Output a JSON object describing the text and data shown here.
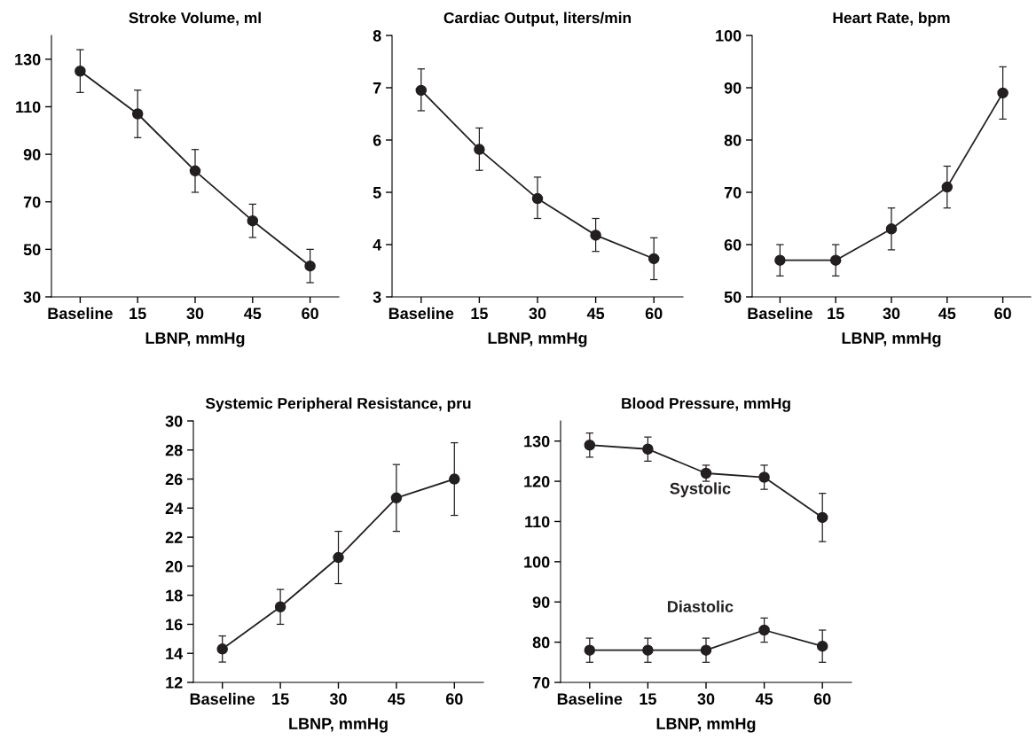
{
  "chart_data": [
    {
      "type": "line",
      "title": "Stroke Volume, ml",
      "xlabel": "LBNP, mmHg",
      "categories": [
        "Baseline",
        "15",
        "30",
        "45",
        "60"
      ],
      "ylim": [
        30,
        140
      ],
      "yticks": [
        30,
        50,
        70,
        90,
        110,
        130
      ],
      "marker": "circle",
      "line_style": "solid",
      "grid": false,
      "legend": false,
      "series": [
        {
          "color": "#231f20",
          "values": [
            125,
            107,
            83,
            62,
            43
          ],
          "errors": [
            [
              116,
              134
            ],
            [
              97,
              117
            ],
            [
              74,
              92
            ],
            [
              55,
              69
            ],
            [
              36,
              50
            ]
          ]
        }
      ]
    },
    {
      "type": "line",
      "title": "Cardiac Output, liters/min",
      "xlabel": "LBNP, mmHg",
      "categories": [
        "Baseline",
        "15",
        "30",
        "45",
        "60"
      ],
      "ylim": [
        3,
        8
      ],
      "yticks": [
        3,
        4,
        5,
        6,
        7,
        8
      ],
      "marker": "circle",
      "line_style": "solid",
      "grid": false,
      "legend": false,
      "series": [
        {
          "color": "#231f20",
          "values": [
            6.95,
            5.82,
            4.88,
            4.18,
            3.73
          ],
          "errors": [
            [
              6.56,
              7.36
            ],
            [
              5.42,
              6.23
            ],
            [
              4.5,
              5.29
            ],
            [
              3.87,
              4.5
            ],
            [
              3.33,
              4.13
            ]
          ]
        }
      ]
    },
    {
      "type": "line",
      "title": "Heart Rate, bpm",
      "xlabel": "LBNP, mmHg",
      "categories": [
        "Baseline",
        "15",
        "30",
        "45",
        "60"
      ],
      "ylim": [
        50,
        100
      ],
      "yticks": [
        50,
        60,
        70,
        80,
        90,
        100
      ],
      "marker": "circle",
      "line_style": "solid",
      "grid": false,
      "legend": false,
      "series": [
        {
          "color": "#231f20",
          "values": [
            57,
            57,
            63,
            71,
            89
          ],
          "errors": [
            [
              54,
              60
            ],
            [
              54,
              60
            ],
            [
              59,
              67
            ],
            [
              67,
              75
            ],
            [
              84,
              94
            ]
          ]
        }
      ]
    },
    {
      "type": "line",
      "title": "Systemic Peripheral Resistance, pru",
      "xlabel": "LBNP, mmHg",
      "categories": [
        "Baseline",
        "15",
        "30",
        "45",
        "60"
      ],
      "ylim": [
        12,
        30
      ],
      "yticks": [
        12,
        14,
        16,
        18,
        20,
        22,
        24,
        26,
        28,
        30
      ],
      "marker": "circle",
      "line_style": "solid",
      "grid": false,
      "legend": false,
      "series": [
        {
          "color": "#231f20",
          "values": [
            14.3,
            17.2,
            20.6,
            24.7,
            26
          ],
          "errors": [
            [
              13.4,
              15.2
            ],
            [
              16,
              18.4
            ],
            [
              18.8,
              22.4
            ],
            [
              22.4,
              27
            ],
            [
              23.5,
              28.5
            ]
          ]
        }
      ]
    },
    {
      "type": "line",
      "title": "Blood Pressure, mmHg",
      "xlabel": "LBNP, mmHg",
      "categories": [
        "Baseline",
        "15",
        "30",
        "45",
        "60"
      ],
      "ylim": [
        70,
        135
      ],
      "yticks": [
        70,
        80,
        90,
        100,
        110,
        120,
        130
      ],
      "marker": "circle",
      "line_style": "solid",
      "grid": false,
      "legend": false,
      "series": [
        {
          "name": "Systolic",
          "color": "#231f20",
          "values": [
            129,
            128,
            122,
            121,
            111
          ],
          "errors": [
            [
              126,
              132
            ],
            [
              125,
              131
            ],
            [
              120,
              124
            ],
            [
              118,
              124
            ],
            [
              105,
              117
            ]
          ]
        },
        {
          "name": "Diastolic",
          "color": "#231f20",
          "values": [
            78,
            78,
            78,
            83,
            79
          ],
          "errors": [
            [
              75,
              81
            ],
            [
              75,
              81
            ],
            [
              75,
              81
            ],
            [
              80,
              86
            ],
            [
              75,
              83
            ]
          ]
        }
      ]
    }
  ]
}
